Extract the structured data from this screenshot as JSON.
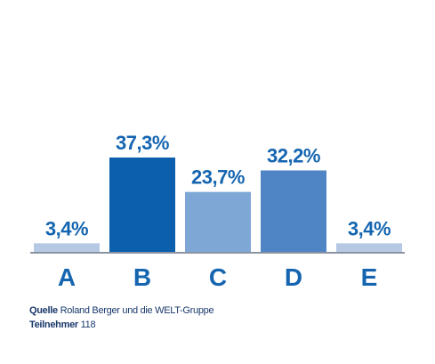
{
  "chart_data": {
    "type": "bar",
    "categories": [
      "A",
      "B",
      "C",
      "D",
      "E"
    ],
    "values": [
      3.4,
      37.3,
      23.7,
      32.2,
      3.4
    ],
    "value_labels": [
      "3,4%",
      "37,3%",
      "23,7%",
      "32,2%",
      "3,4%"
    ],
    "bar_colors": [
      "#b6c9e4",
      "#0b5fad",
      "#7ea7d6",
      "#4f85c4",
      "#b6c9e4"
    ],
    "label_color": "#1565b0",
    "ylim": [
      0,
      37.3
    ],
    "grid": false,
    "legend": "none"
  },
  "footer": {
    "source_label": "Quelle",
    "source_text": "Roland Berger und die WELT-Gruppe",
    "participants_label": "Teilnehmer",
    "participants_value": "118"
  }
}
